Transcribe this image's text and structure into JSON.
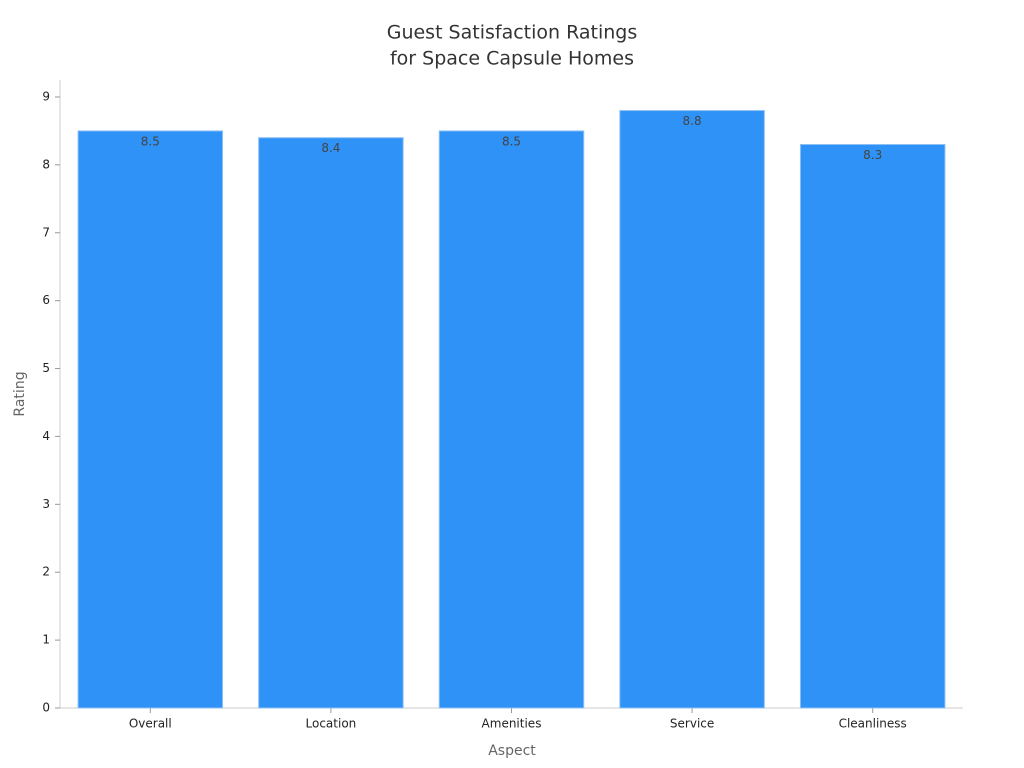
{
  "chart_data": {
    "type": "bar",
    "title": [
      "Guest Satisfaction Ratings",
      "for Space Capsule Homes"
    ],
    "x_label": "Aspect",
    "y_label": "Rating",
    "categories": [
      "Overall",
      "Location",
      "Amenities",
      "Service",
      "Cleanliness"
    ],
    "values": [
      8.5,
      8.4,
      8.5,
      8.8,
      8.3
    ],
    "color": "#2f92f7",
    "ylim": [
      0,
      9.25
    ],
    "yticks": [
      0,
      1,
      2,
      3,
      4,
      5,
      6,
      7,
      8,
      9
    ],
    "grid": false
  }
}
